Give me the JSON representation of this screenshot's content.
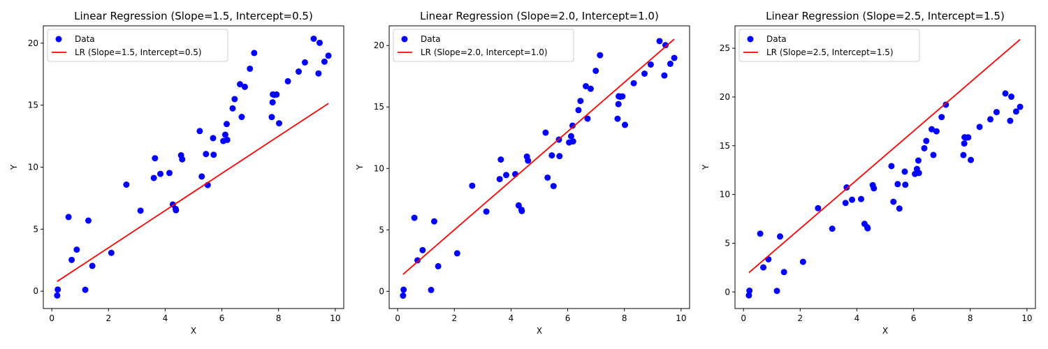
{
  "colors": {
    "data_points": "#0000ff",
    "regression_line": "#ff0000",
    "axes": "#000000",
    "background": "#ffffff"
  },
  "data_x": [
    0.19,
    0.21,
    0.59,
    0.7,
    0.88,
    1.18,
    1.29,
    1.43,
    2.1,
    2.63,
    3.13,
    3.6,
    3.64,
    3.83,
    4.15,
    4.27,
    4.37,
    4.38,
    4.56,
    4.6,
    5.22,
    5.29,
    5.44,
    5.5,
    5.69,
    5.71,
    6.05,
    6.12,
    6.17,
    6.19,
    6.38,
    6.45,
    6.64,
    6.7,
    6.81,
    6.99,
    7.14,
    7.76,
    7.79,
    7.8,
    7.85,
    7.93,
    8.02,
    8.33,
    8.71,
    8.93,
    9.24,
    9.41,
    9.45,
    9.62,
    9.76
  ],
  "data_y": [
    -0.35,
    0.13,
    5.98,
    2.52,
    3.35,
    0.11,
    5.69,
    2.04,
    3.09,
    8.59,
    6.49,
    9.13,
    10.72,
    9.46,
    9.53,
    6.99,
    6.63,
    6.53,
    10.96,
    10.63,
    12.91,
    9.25,
    11.06,
    8.56,
    12.34,
    11.0,
    12.11,
    12.62,
    13.48,
    12.2,
    14.74,
    15.49,
    16.69,
    14.05,
    16.48,
    17.94,
    19.21,
    14.04,
    15.23,
    15.87,
    15.83,
    15.86,
    13.54,
    16.93,
    17.71,
    18.45,
    20.36,
    17.56,
    20.03,
    18.51,
    18.99
  ],
  "chart_data": [
    {
      "type": "scatter",
      "title": "Linear Regression (Slope=1.5, Intercept=0.5)",
      "xlabel": "X",
      "ylabel": "Y",
      "xlim": [
        -0.3,
        10.3
      ],
      "ylim": [
        -1.4,
        21.4
      ],
      "xticks": [
        0,
        2,
        4,
        6,
        8,
        10
      ],
      "xtick_labels": [
        "0",
        "2",
        "4",
        "6",
        "8",
        "10"
      ],
      "yticks": [
        0,
        5,
        10,
        15,
        20
      ],
      "ytick_labels": [
        "0",
        "5",
        "10",
        "15",
        "20"
      ],
      "grid": false,
      "legend_placement": "upper-left",
      "series": [
        {
          "name": "Data",
          "kind": "scatter",
          "color": "#0000ff"
        },
        {
          "name": "LR (Slope=1.5, Intercept=0.5)",
          "kind": "line",
          "slope": 1.5,
          "intercept": 0.5,
          "x": [
            0.19,
            9.76
          ],
          "color": "#ff0000"
        }
      ]
    },
    {
      "type": "scatter",
      "title": "Linear Regression (Slope=2.0, Intercept=1.0)",
      "xlabel": "X",
      "ylabel": "Y",
      "xlim": [
        -0.3,
        10.3
      ],
      "ylim": [
        -1.4,
        21.6
      ],
      "xticks": [
        0,
        2,
        4,
        6,
        8,
        10
      ],
      "xtick_labels": [
        "0",
        "2",
        "4",
        "6",
        "8",
        "10"
      ],
      "yticks": [
        0,
        5,
        10,
        15,
        20
      ],
      "ytick_labels": [
        "0",
        "5",
        "10",
        "15",
        "20"
      ],
      "grid": false,
      "legend_placement": "upper-left",
      "series": [
        {
          "name": "Data",
          "kind": "scatter",
          "color": "#0000ff"
        },
        {
          "name": "LR (Slope=2.0, Intercept=1.0)",
          "kind": "line",
          "slope": 2.0,
          "intercept": 1.0,
          "x": [
            0.19,
            9.76
          ],
          "color": "#ff0000"
        }
      ]
    },
    {
      "type": "scatter",
      "title": "Linear Regression (Slope=2.5, Intercept=1.5)",
      "xlabel": "X",
      "ylabel": "Y",
      "xlim": [
        -0.3,
        10.3
      ],
      "ylim": [
        -1.7,
        27.3
      ],
      "xticks": [
        0,
        2,
        4,
        6,
        8,
        10
      ],
      "xtick_labels": [
        "0",
        "2",
        "4",
        "6",
        "8",
        "10"
      ],
      "yticks": [
        0,
        5,
        10,
        15,
        20,
        25
      ],
      "ytick_labels": [
        "0",
        "5",
        "10",
        "15",
        "20",
        "25"
      ],
      "grid": false,
      "legend_placement": "upper-left",
      "series": [
        {
          "name": "Data",
          "kind": "scatter",
          "color": "#0000ff"
        },
        {
          "name": "LR (Slope=2.5, Intercept=1.5)",
          "kind": "line",
          "slope": 2.5,
          "intercept": 1.5,
          "x": [
            0.19,
            9.76
          ],
          "color": "#ff0000"
        }
      ]
    }
  ]
}
